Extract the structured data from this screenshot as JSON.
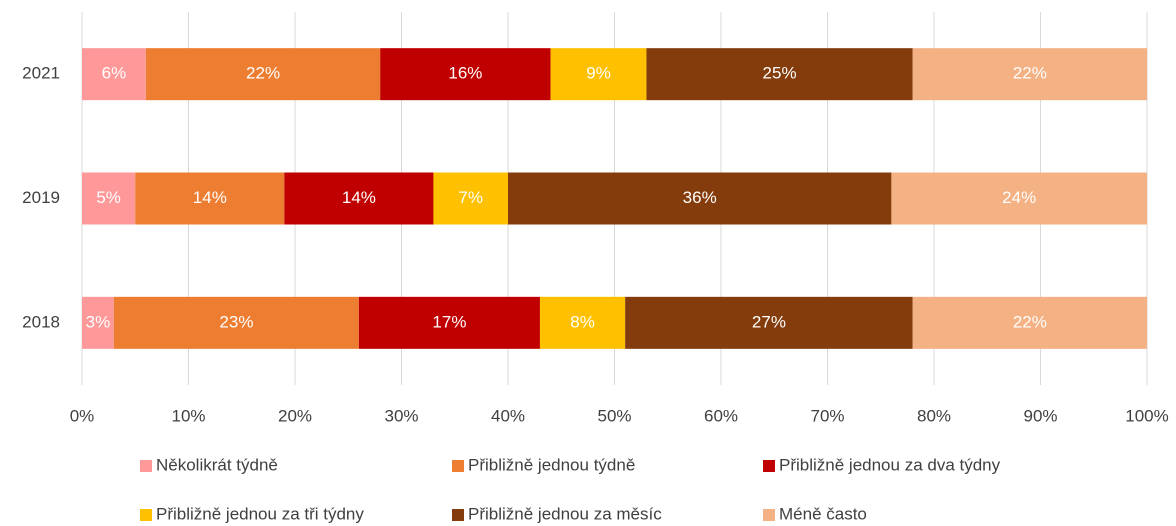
{
  "chart_data": {
    "type": "stacked_barh",
    "categories": [
      "2021",
      "2019",
      "2018"
    ],
    "series": [
      {
        "name": "Několikrát týdně",
        "color": "#ff9999",
        "values": [
          6,
          5,
          3
        ],
        "value_labels": [
          "6%",
          "5%",
          "3%"
        ]
      },
      {
        "name": "Přibližně jednou týdně",
        "color": "#ed7d31",
        "values": [
          22,
          14,
          23
        ],
        "value_labels": [
          "22%",
          "14%",
          "23%"
        ]
      },
      {
        "name": "Přibližně jednou za dva týdny",
        "color": "#c00000",
        "values": [
          16,
          14,
          17
        ],
        "value_labels": [
          "16%",
          "14%",
          "17%"
        ]
      },
      {
        "name": "Přibližně jednou za tři týdny",
        "color": "#ffc000",
        "values": [
          9,
          7,
          8
        ],
        "value_labels": [
          "9%",
          "7%",
          "8%"
        ]
      },
      {
        "name": "Přibližně jednou za měsíc",
        "color": "#843c0c",
        "values": [
          25,
          36,
          27
        ],
        "value_labels": [
          "25%",
          "36%",
          "27%"
        ]
      },
      {
        "name": "Méně často",
        "color": "#f4b183",
        "values": [
          22,
          24,
          22
        ],
        "value_labels": [
          "22%",
          "24%",
          "22%"
        ]
      }
    ],
    "xlim": [
      0,
      100
    ],
    "xticks": [
      {
        "value": 0,
        "label": "0%"
      },
      {
        "value": 10,
        "label": "10%"
      },
      {
        "value": 20,
        "label": "20%"
      },
      {
        "value": 30,
        "label": "30%"
      },
      {
        "value": 40,
        "label": "40%"
      },
      {
        "value": 50,
        "label": "50%"
      },
      {
        "value": 60,
        "label": "60%"
      },
      {
        "value": 70,
        "label": "70%"
      },
      {
        "value": 80,
        "label": "80%"
      },
      {
        "value": 90,
        "label": "90%"
      },
      {
        "value": 100,
        "label": "100%"
      }
    ],
    "grid": true,
    "legend": "bottom"
  }
}
